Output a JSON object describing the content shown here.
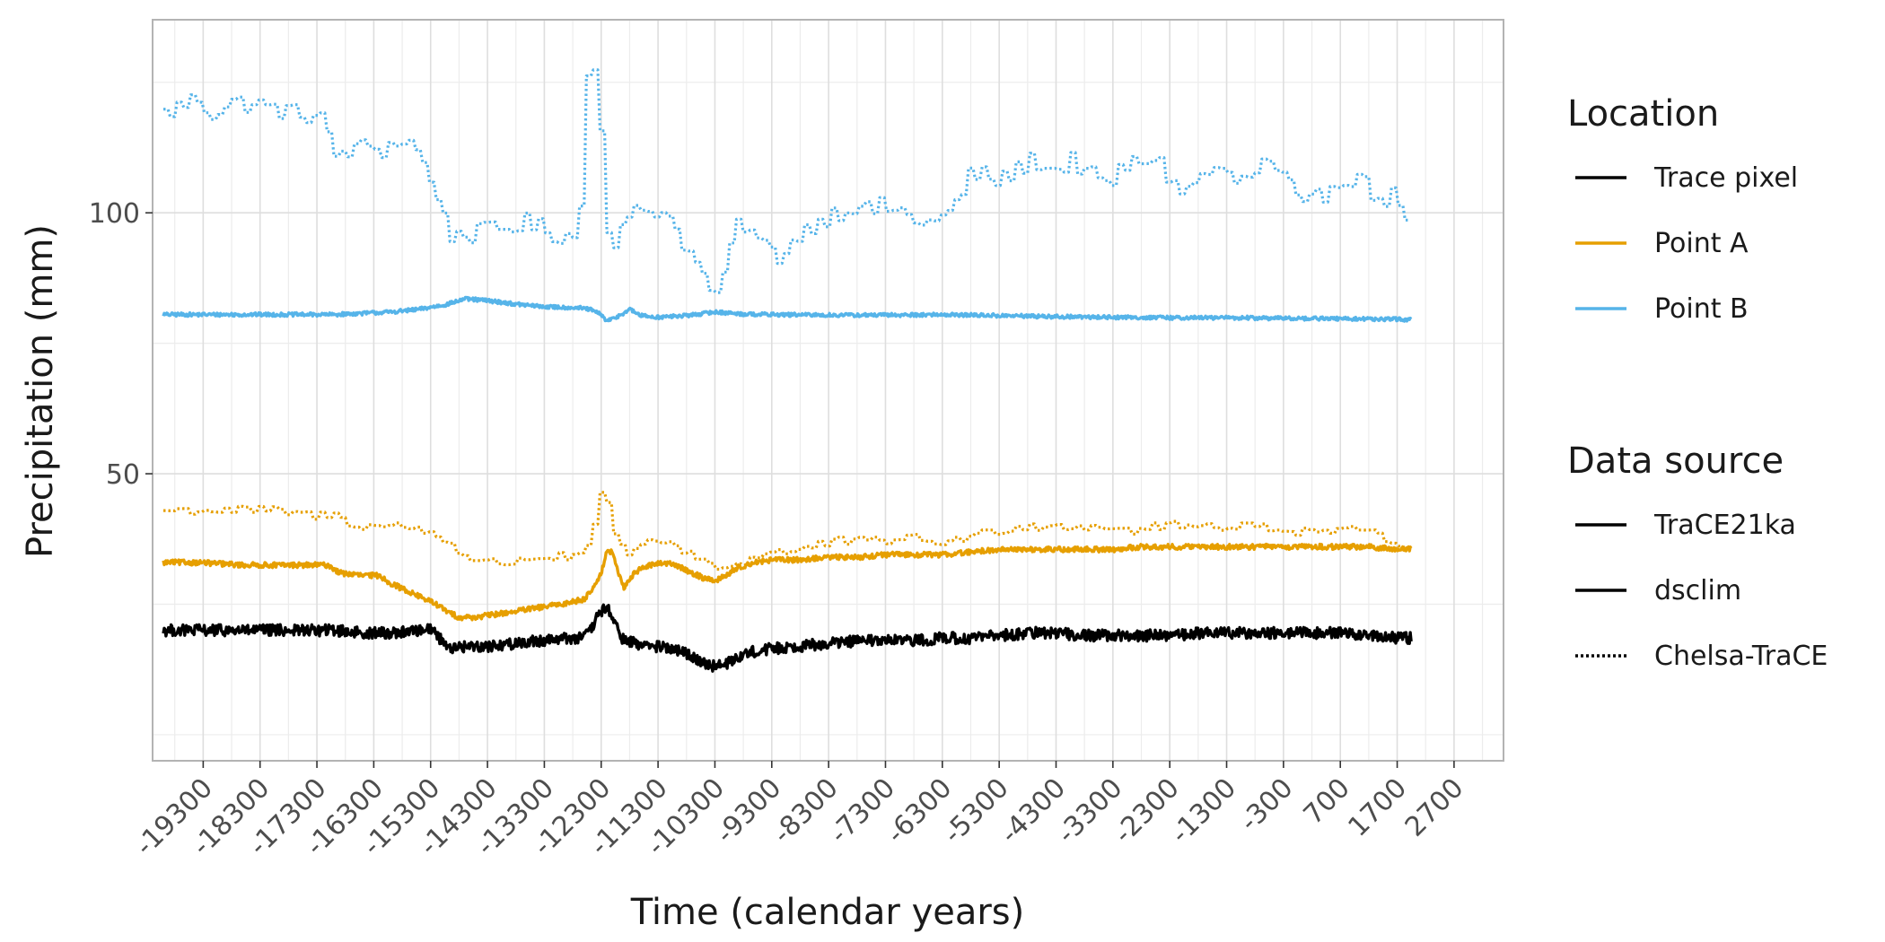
{
  "chart_data": {
    "type": "line",
    "xlabel": "Time (calendar years)",
    "ylabel": "Precipitation (mm)",
    "xlim": [
      -20190,
      3570
    ],
    "ylim": [
      -5,
      137
    ],
    "x_ticks": [
      -19300,
      -18300,
      -17300,
      -16300,
      -15300,
      -14300,
      -13300,
      -12300,
      -11300,
      -10300,
      -9300,
      -8300,
      -7300,
      -6300,
      -5300,
      -4300,
      -3300,
      -2300,
      -1300,
      -300,
      700,
      1700,
      2700
    ],
    "y_ticks": [
      50,
      100
    ],
    "grid": true,
    "legend_position": "right",
    "legends": [
      {
        "title": "Location",
        "items": [
          {
            "label": "Trace pixel",
            "color": "#000000"
          },
          {
            "label": "Point A",
            "color": "#E69F00"
          },
          {
            "label": "Point B",
            "color": "#56B4E9"
          }
        ]
      },
      {
        "title": "Data source",
        "items": [
          {
            "label": "TraCE21ka",
            "dash": "solid"
          },
          {
            "label": "dsclim",
            "dash": "solid"
          },
          {
            "label": "Chelsa-TraCE",
            "dash": "dotted"
          }
        ]
      }
    ],
    "series": [
      {
        "location": "Point B",
        "source": "Chelsa-TraCE",
        "color": "#56B4E9",
        "dash": "dotted",
        "noise": 2.0,
        "x": [
          -20000,
          -19800,
          -19600,
          -19400,
          -19200,
          -19000,
          -18800,
          -18600,
          -18400,
          -18200,
          -18000,
          -17800,
          -17600,
          -17400,
          -17200,
          -17100,
          -17000,
          -16800,
          -16600,
          -16400,
          -16200,
          -16000,
          -15800,
          -15600,
          -15400,
          -15200,
          -15100,
          -15000,
          -14800,
          -14600,
          -14400,
          -14200,
          -14000,
          -13800,
          -13600,
          -13400,
          -13200,
          -13000,
          -12800,
          -12700,
          -12650,
          -12600,
          -12500,
          -12400,
          -12300,
          -12250,
          -12200,
          -12100,
          -12000,
          -11800,
          -11600,
          -11400,
          -11300,
          -11200,
          -11000,
          -10800,
          -10600,
          -10400,
          -10300,
          -10200,
          -10100,
          -10000,
          -9800,
          -9600,
          -9400,
          -9200,
          -9000,
          -8800,
          -8600,
          -8400,
          -8200,
          -8000,
          -7800,
          -7600,
          -7400,
          -7200,
          -7000,
          -6800,
          -6600,
          -6400,
          -6200,
          -6000,
          -5800,
          -5600,
          -5400,
          -5200,
          -5000,
          -4800,
          -4600,
          -4400,
          -4200,
          -4000,
          -3800,
          -3600,
          -3400,
          -3200,
          -3000,
          -2800,
          -2600,
          -2400,
          -2200,
          -2000,
          -1800,
          -1600,
          -1400,
          -1200,
          -1000,
          -800,
          -600,
          -400,
          -200,
          0,
          200,
          400,
          600,
          800,
          1000,
          1200,
          1400,
          1600,
          1800,
          1950
        ],
        "y": [
          119,
          120,
          121,
          122,
          119,
          120,
          121,
          121,
          121,
          120,
          120,
          119,
          119,
          119,
          118,
          113,
          111,
          112,
          112,
          113,
          112,
          113,
          114,
          113,
          108,
          104,
          99,
          96,
          96,
          96,
          96,
          97,
          97,
          98,
          98,
          97,
          96,
          96,
          95,
          97,
          110,
          123,
          130,
          128,
          115,
          103,
          96,
          95,
          96,
          99,
          101,
          100,
          102,
          100,
          97,
          93,
          89,
          86,
          82,
          86,
          91,
          96,
          98,
          95,
          93,
          92,
          94,
          96,
          98,
          99,
          100,
          101,
          102,
          100,
          101,
          101,
          100,
          98,
          99,
          98,
          100,
          103,
          108,
          107,
          106,
          107,
          108,
          110,
          110,
          108,
          109,
          110,
          108,
          106,
          105,
          108,
          109,
          110,
          111,
          108,
          105,
          104,
          107,
          108,
          108,
          106,
          106,
          108,
          110,
          107,
          105,
          100,
          102,
          104,
          106,
          107,
          107,
          104,
          103,
          103,
          101,
          97
        ]
      },
      {
        "location": "Point B",
        "source": "TraCE21ka",
        "color": "#56B4E9",
        "dash": "solid",
        "noise": 0.35,
        "x": [
          -20000,
          -19000,
          -18000,
          -17000,
          -16000,
          -15500,
          -15000,
          -14700,
          -14300,
          -13800,
          -13300,
          -12700,
          -12500,
          -12300,
          -12200,
          -12000,
          -11800,
          -11600,
          -11300,
          -10800,
          -10300,
          -9800,
          -9300,
          -8300,
          -7300,
          -6300,
          -5300,
          -4300,
          -3300,
          -2300,
          -1300,
          -300,
          700,
          1700,
          1950
        ],
        "y": [
          80.5,
          80.5,
          80.5,
          80.5,
          81,
          81.5,
          82.5,
          83.5,
          83.2,
          82.5,
          82,
          81.8,
          81.5,
          80.5,
          79.2,
          80.2,
          81.5,
          80.3,
          80,
          80.3,
          81,
          80.6,
          80.5,
          80.4,
          80.4,
          80.5,
          80.3,
          80.1,
          80,
          79.9,
          79.9,
          79.8,
          79.7,
          79.6,
          79.5
        ]
      },
      {
        "location": "Point A",
        "source": "Chelsa-TraCE",
        "color": "#E69F00",
        "dash": "dotted",
        "noise": 0.9,
        "x": [
          -20000,
          -19400,
          -18800,
          -18200,
          -17400,
          -17000,
          -16800,
          -16600,
          -16400,
          -16000,
          -15800,
          -15400,
          -15200,
          -15000,
          -14800,
          -14500,
          -14200,
          -13900,
          -13600,
          -13300,
          -13000,
          -12800,
          -12650,
          -12500,
          -12400,
          -12300,
          -12200,
          -12100,
          -12000,
          -11800,
          -11600,
          -11400,
          -11200,
          -11000,
          -10800,
          -10600,
          -10400,
          -10300,
          -10100,
          -9800,
          -9500,
          -9200,
          -9000,
          -8600,
          -8200,
          -7800,
          -7400,
          -7000,
          -6600,
          -6200,
          -5800,
          -5400,
          -5000,
          -4600,
          -4200,
          -3800,
          -3400,
          -3000,
          -2600,
          -2200,
          -1800,
          -1400,
          -1000,
          -600,
          -200,
          200,
          600,
          1000,
          1400,
          1700,
          1950
        ],
        "y": [
          43,
          43,
          43,
          43,
          42,
          42,
          41,
          40,
          40,
          40,
          40,
          39,
          38,
          37,
          35,
          33,
          33,
          33,
          34,
          34,
          34,
          34,
          34,
          37,
          42,
          48,
          44,
          38,
          36,
          35,
          36,
          37,
          37,
          36,
          35,
          34,
          33,
          32,
          32,
          33,
          35,
          35,
          35,
          36,
          37,
          37,
          37,
          38,
          37,
          37,
          38,
          39,
          40,
          40,
          40,
          40,
          40,
          39,
          40,
          40,
          40,
          40,
          40,
          40,
          39,
          39,
          39,
          39,
          38,
          37,
          36
        ]
      },
      {
        "location": "Point A",
        "source": "TraCE21ka",
        "color": "#E69F00",
        "dash": "solid",
        "noise": 0.5,
        "x": [
          -20000,
          -19400,
          -18600,
          -17800,
          -17100,
          -16900,
          -16500,
          -16200,
          -16000,
          -15800,
          -15600,
          -15400,
          -15200,
          -15000,
          -14800,
          -14500,
          -14200,
          -13900,
          -13600,
          -13300,
          -13000,
          -12800,
          -12600,
          -12450,
          -12300,
          -12200,
          -12100,
          -12000,
          -11900,
          -11800,
          -11600,
          -11400,
          -11200,
          -11000,
          -10800,
          -10500,
          -10300,
          -10100,
          -9900,
          -9600,
          -9300,
          -8800,
          -8300,
          -7800,
          -7300,
          -6800,
          -6300,
          -5800,
          -5300,
          -4800,
          -4300,
          -3800,
          -3300,
          -2800,
          -2300,
          -1800,
          -1300,
          -800,
          -300,
          200,
          700,
          1200,
          1700,
          1950
        ],
        "y": [
          33,
          33,
          32.5,
          32.5,
          32.5,
          31,
          30.5,
          30.5,
          29,
          28,
          27,
          26,
          25,
          23.5,
          22.5,
          22.5,
          23,
          23.5,
          24,
          24.5,
          25,
          25.5,
          26,
          28,
          31,
          35,
          35,
          31,
          28,
          30,
          32,
          32.5,
          33,
          32.5,
          31.5,
          30,
          29.5,
          30.5,
          32,
          33,
          33.5,
          33.5,
          34,
          34,
          34.5,
          34.5,
          34.5,
          35,
          35.5,
          35.5,
          35.5,
          35.5,
          35.5,
          36,
          36,
          36,
          36,
          36,
          36,
          36,
          36,
          36,
          35.5,
          35.5
        ]
      },
      {
        "location": "Trace pixel",
        "source": "TraCE21ka",
        "color": "#000000",
        "dash": "solid",
        "noise": 1.1,
        "x": [
          -20000,
          -19000,
          -18000,
          -17000,
          -16500,
          -16000,
          -15500,
          -15300,
          -15100,
          -14900,
          -14600,
          -14200,
          -13800,
          -13400,
          -13000,
          -12700,
          -12500,
          -12350,
          -12200,
          -12050,
          -11900,
          -11700,
          -11400,
          -11100,
          -10800,
          -10500,
          -10300,
          -10100,
          -9900,
          -9600,
          -9300,
          -8800,
          -8300,
          -7800,
          -7300,
          -6800,
          -6300,
          -5800,
          -5300,
          -4800,
          -4300,
          -3800,
          -3300,
          -2800,
          -2300,
          -1800,
          -1300,
          -800,
          -300,
          200,
          700,
          1200,
          1700,
          1950
        ],
        "y": [
          20,
          20,
          20,
          20,
          19.5,
          19.5,
          20,
          20.5,
          18,
          16.5,
          17,
          17,
          17.5,
          18,
          18.5,
          18.5,
          19.5,
          23,
          24.5,
          21,
          18,
          17.5,
          17,
          16.5,
          15.5,
          14,
          13,
          13.5,
          15,
          16,
          16.5,
          17,
          17.5,
          18,
          18,
          18,
          18.5,
          18.5,
          19,
          19.5,
          19.5,
          19,
          19,
          19,
          19,
          19.5,
          19.5,
          19.5,
          19.5,
          19.5,
          19.5,
          19,
          18.5,
          18.5
        ]
      }
    ]
  }
}
